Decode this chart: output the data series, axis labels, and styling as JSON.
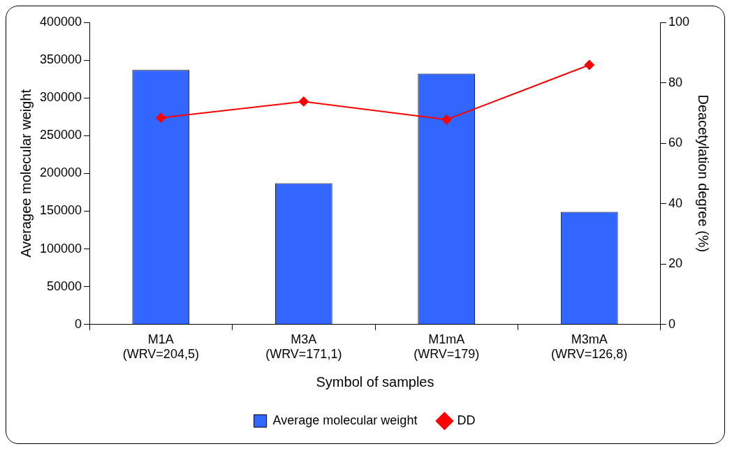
{
  "chart_data": {
    "type": "bar",
    "xlabel": "Symbol of samples",
    "ylabel": "Averagee molecular weight",
    "y2label": "Deacetylation degree (%)",
    "categories": [
      "M1A (WRV=204,5)",
      "M3A (WRV=171,1)",
      "M1mA (WRV=179)",
      "M3mA (WRV=126,8)"
    ],
    "series": [
      {
        "name": "Average molecular weight",
        "color": "#3366ff",
        "values": [
          337000,
          187000,
          332000,
          149000
        ]
      },
      {
        "name": "DD",
        "type": "line",
        "axis": "y2",
        "color": "#ff0000",
        "marker": "diamond",
        "values": [
          68.4,
          73.8,
          67.8,
          85.9
        ]
      }
    ],
    "ylim": [
      0,
      400000
    ],
    "yticks": [
      0,
      50000,
      100000,
      150000,
      200000,
      250000,
      300000,
      350000,
      400000
    ],
    "y2lim": [
      0,
      100
    ],
    "y2ticks": [
      0,
      20,
      40,
      60,
      80,
      100
    ],
    "grid": false,
    "legend": "bottom"
  }
}
